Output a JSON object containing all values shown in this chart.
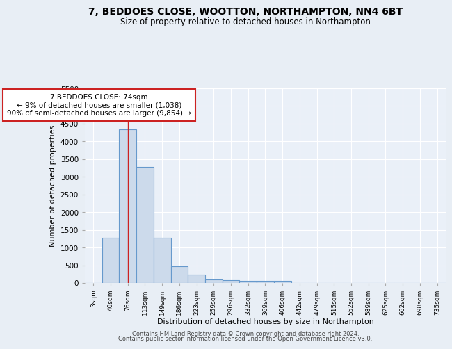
{
  "title1": "7, BEDDOES CLOSE, WOOTTON, NORTHAMPTON, NN4 6BT",
  "title2": "Size of property relative to detached houses in Northampton",
  "xlabel": "Distribution of detached houses by size in Northampton",
  "ylabel": "Number of detached properties",
  "categories": [
    "3sqm",
    "40sqm",
    "76sqm",
    "113sqm",
    "149sqm",
    "186sqm",
    "223sqm",
    "259sqm",
    "296sqm",
    "332sqm",
    "369sqm",
    "406sqm",
    "442sqm",
    "479sqm",
    "515sqm",
    "552sqm",
    "589sqm",
    "625sqm",
    "662sqm",
    "698sqm",
    "735sqm"
  ],
  "values": [
    0,
    1270,
    4340,
    3280,
    1280,
    480,
    230,
    100,
    75,
    55,
    50,
    50,
    0,
    0,
    0,
    0,
    0,
    0,
    0,
    0,
    0
  ],
  "bar_color": "#ccdaeb",
  "bar_edge_color": "#6699cc",
  "marker_line_color": "#cc2222",
  "annotation_title": "7 BEDDOES CLOSE: 74sqm",
  "annotation_line1": "← 9% of detached houses are smaller (1,038)",
  "annotation_line2": "90% of semi-detached houses are larger (9,854) →",
  "annotation_box_color": "#ffffff",
  "annotation_border_color": "#cc2222",
  "ylim": [
    0,
    5500
  ],
  "yticks": [
    0,
    500,
    1000,
    1500,
    2000,
    2500,
    3000,
    3500,
    4000,
    4500,
    5000,
    5500
  ],
  "footer1": "Contains HM Land Registry data © Crown copyright and database right 2024.",
  "footer2": "Contains public sector information licensed under the Open Government Licence v3.0.",
  "background_color": "#e8eef5",
  "plot_background_color": "#eaf0f8"
}
